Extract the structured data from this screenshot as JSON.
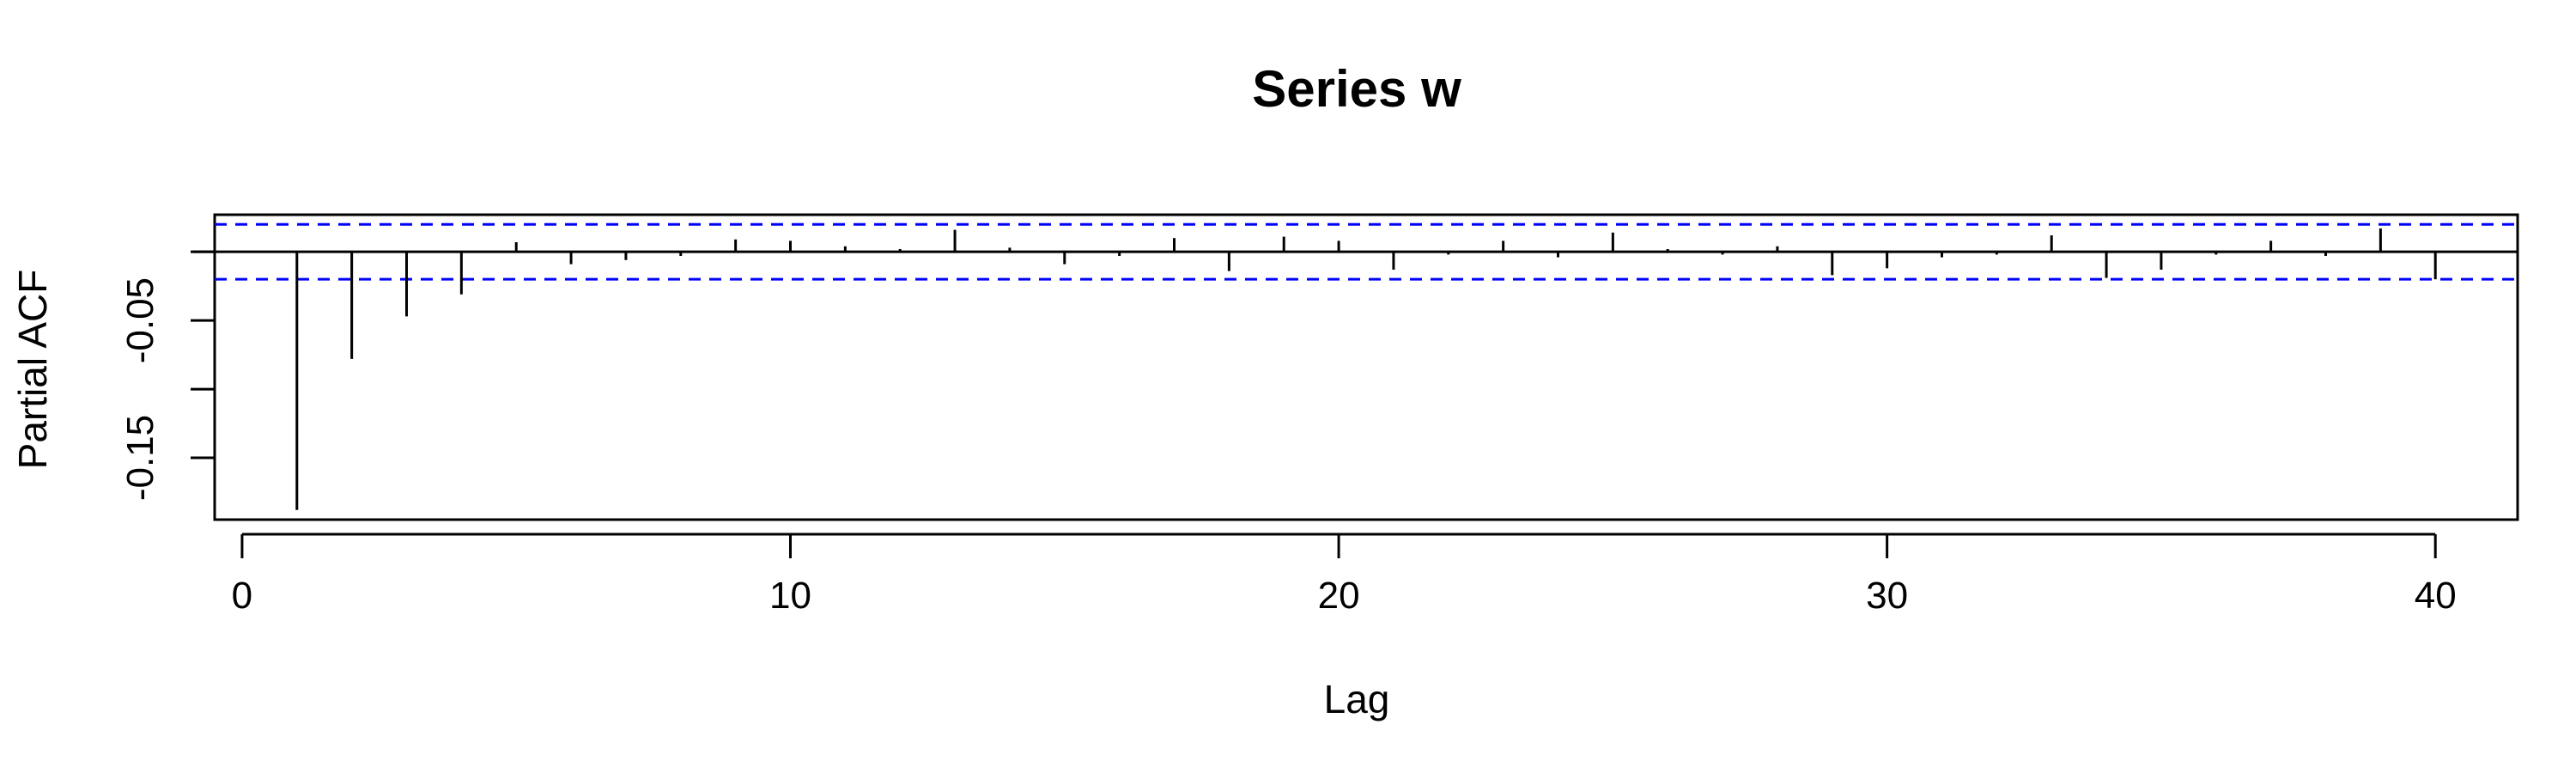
{
  "chart_data": {
    "type": "bar",
    "title": "Series  w",
    "xlabel": "Lag",
    "ylabel": "Partial ACF",
    "xlim": [
      -0.5,
      41.5
    ],
    "ylim": [
      -0.195,
      0.027
    ],
    "x_ticks": [
      0,
      10,
      20,
      30,
      40
    ],
    "x_tick_labels": [
      "0",
      "10",
      "20",
      "30",
      "40"
    ],
    "y_ticks": [
      -0.15,
      -0.1,
      -0.05,
      0
    ],
    "y_tick_labels": [
      "-0.15",
      "",
      "-0.05",
      ""
    ],
    "confidence_limit": 0.02,
    "confidence_color": "#0000ff",
    "line_color": "#000000",
    "grid": false,
    "legend": "none",
    "lags": [
      1,
      2,
      3,
      4,
      5,
      6,
      7,
      8,
      9,
      10,
      11,
      12,
      13,
      14,
      15,
      16,
      17,
      18,
      19,
      20,
      21,
      22,
      23,
      24,
      25,
      26,
      27,
      28,
      29,
      30,
      31,
      32,
      33,
      34,
      35,
      36,
      37,
      38,
      39,
      40
    ],
    "values": [
      -0.188,
      -0.078,
      -0.047,
      -0.031,
      0.007,
      -0.009,
      -0.006,
      -0.003,
      0.009,
      0.008,
      0.004,
      0.002,
      0.016,
      0.003,
      -0.009,
      -0.003,
      0.01,
      -0.014,
      0.011,
      0.008,
      -0.013,
      -0.002,
      0.008,
      -0.004,
      0.014,
      0.002,
      -0.002,
      0.004,
      -0.017,
      -0.012,
      -0.004,
      -0.002,
      0.012,
      -0.019,
      -0.013,
      -0.002,
      0.008,
      -0.003,
      0.017,
      -0.02
    ]
  }
}
